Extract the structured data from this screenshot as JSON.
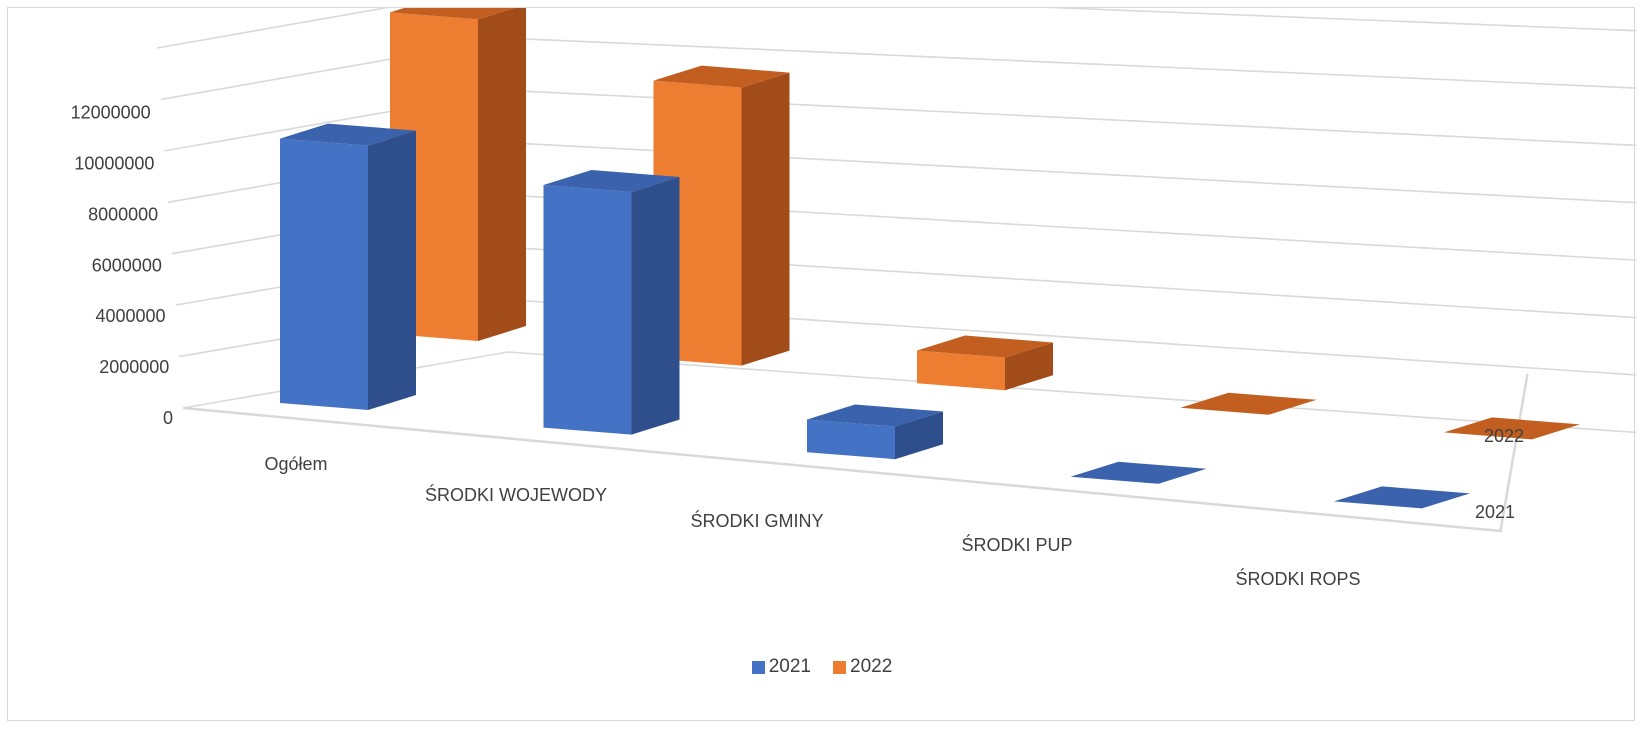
{
  "chart_data": {
    "type": "bar",
    "subtype": "3d-column",
    "categories": [
      "Ogółem",
      "ŚRODKI WOJEWODY",
      "ŚRODKI GMINY",
      "ŚRODKI PUP",
      "ŚRODKI ROPS"
    ],
    "series": [
      {
        "name": "2021",
        "values": [
          9700000,
          8900000,
          1200000,
          0,
          0
        ],
        "color": "#4472c4",
        "side_color": "#2f4f8c",
        "top_color": "#3a62ad"
      },
      {
        "name": "2022",
        "values": [
          11800000,
          10200000,
          1200000,
          0,
          0
        ],
        "color": "#ed7d31",
        "side_color": "#a24d19",
        "top_color": "#c25f20"
      }
    ],
    "y_ticks": [
      "0",
      "2000000",
      "4000000",
      "6000000",
      "8000000",
      "10000000",
      "12000000"
    ],
    "ylim": [
      0,
      14000000
    ],
    "depth_labels": [
      "2022",
      "2021"
    ],
    "grid": true,
    "legend_position": "bottom"
  }
}
